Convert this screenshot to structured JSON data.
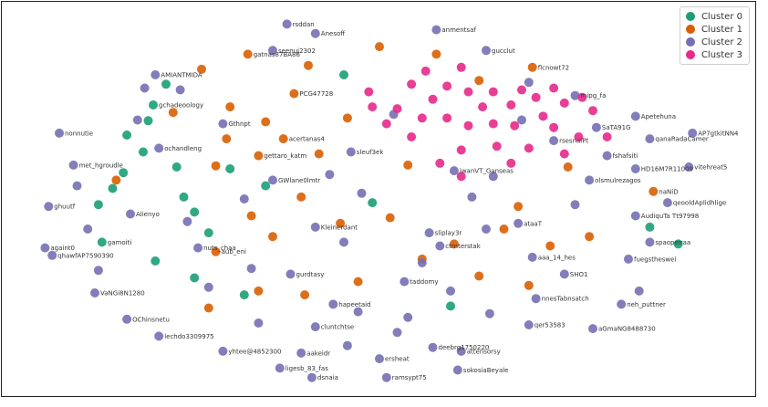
{
  "chart_data": {
    "type": "scatter",
    "title": "",
    "xlabel": "",
    "ylabel": "",
    "xlim": [
      0,
      100
    ],
    "ylim": [
      0,
      100
    ],
    "grid": false,
    "axes_visible": false,
    "legend_position": "top-right",
    "series": [
      {
        "name": "Cluster 0",
        "color": "#1b9e77",
        "points": [
          {
            "x": 20.0,
            "y": 80.5,
            "label": ""
          },
          {
            "x": 18.2,
            "y": 75.0,
            "label": "gchadeoology"
          },
          {
            "x": 17.5,
            "y": 70.8,
            "label": ""
          },
          {
            "x": 14.5,
            "y": 67.0,
            "label": ""
          },
          {
            "x": 16.8,
            "y": 62.5,
            "label": ""
          },
          {
            "x": 21.5,
            "y": 58.5,
            "label": ""
          },
          {
            "x": 14.0,
            "y": 57.0,
            "label": ""
          },
          {
            "x": 12.5,
            "y": 52.8,
            "label": ""
          },
          {
            "x": 10.5,
            "y": 48.5,
            "label": ""
          },
          {
            "x": 22.5,
            "y": 50.5,
            "label": ""
          },
          {
            "x": 24.0,
            "y": 46.5,
            "label": ""
          },
          {
            "x": 26.0,
            "y": 41.0,
            "label": ""
          },
          {
            "x": 11.0,
            "y": 38.5,
            "label": "gamoiti"
          },
          {
            "x": 18.5,
            "y": 33.5,
            "label": ""
          },
          {
            "x": 24.0,
            "y": 29.0,
            "label": ""
          },
          {
            "x": 31.0,
            "y": 24.5,
            "label": ""
          },
          {
            "x": 45.0,
            "y": 83.0,
            "label": ""
          },
          {
            "x": 49.0,
            "y": 49.0,
            "label": ""
          },
          {
            "x": 60.0,
            "y": 21.5,
            "label": ""
          },
          {
            "x": 88.0,
            "y": 42.5,
            "label": ""
          },
          {
            "x": 92.0,
            "y": 38.0,
            "label": ""
          },
          {
            "x": 34.0,
            "y": 53.5,
            "label": ""
          },
          {
            "x": 29.0,
            "y": 58.0,
            "label": ""
          }
        ]
      },
      {
        "name": "Cluster 1",
        "color": "#d95f02",
        "points": [
          {
            "x": 50.0,
            "y": 90.5,
            "label": ""
          },
          {
            "x": 31.5,
            "y": 88.5,
            "label": "gatnas87BA86"
          },
          {
            "x": 25.0,
            "y": 84.5,
            "label": ""
          },
          {
            "x": 40.0,
            "y": 85.5,
            "label": ""
          },
          {
            "x": 38.0,
            "y": 78.0,
            "label": "PCG47728"
          },
          {
            "x": 29.0,
            "y": 74.5,
            "label": ""
          },
          {
            "x": 34.0,
            "y": 70.5,
            "label": ""
          },
          {
            "x": 36.5,
            "y": 66.0,
            "label": "acertanas4"
          },
          {
            "x": 33.0,
            "y": 61.5,
            "label": "gettaro_katm"
          },
          {
            "x": 27.0,
            "y": 58.8,
            "label": ""
          },
          {
            "x": 13.0,
            "y": 55.0,
            "label": ""
          },
          {
            "x": 41.5,
            "y": 62.0,
            "label": ""
          },
          {
            "x": 39.0,
            "y": 50.5,
            "label": ""
          },
          {
            "x": 32.0,
            "y": 45.5,
            "label": ""
          },
          {
            "x": 44.5,
            "y": 43.5,
            "label": ""
          },
          {
            "x": 51.5,
            "y": 45.0,
            "label": ""
          },
          {
            "x": 35.0,
            "y": 40.0,
            "label": ""
          },
          {
            "x": 27.0,
            "y": 36.0,
            "label": "aub_eni"
          },
          {
            "x": 56.0,
            "y": 34.0,
            "label": ""
          },
          {
            "x": 60.5,
            "y": 38.0,
            "label": ""
          },
          {
            "x": 67.5,
            "y": 42.0,
            "label": ""
          },
          {
            "x": 69.5,
            "y": 48.0,
            "label": ""
          },
          {
            "x": 74.0,
            "y": 37.5,
            "label": ""
          },
          {
            "x": 79.5,
            "y": 40.0,
            "label": ""
          },
          {
            "x": 76.5,
            "y": 58.5,
            "label": ""
          },
          {
            "x": 88.5,
            "y": 52.0,
            "label": "naNiD"
          },
          {
            "x": 71.5,
            "y": 85.0,
            "label": "flcnowt72"
          },
          {
            "x": 64.0,
            "y": 81.5,
            "label": ""
          },
          {
            "x": 58.0,
            "y": 88.5,
            "label": ""
          },
          {
            "x": 33.0,
            "y": 25.5,
            "label": ""
          },
          {
            "x": 26.0,
            "y": 21.0,
            "label": ""
          },
          {
            "x": 39.5,
            "y": 24.5,
            "label": ""
          },
          {
            "x": 47.0,
            "y": 28.0,
            "label": ""
          },
          {
            "x": 71.0,
            "y": 27.0,
            "label": ""
          },
          {
            "x": 64.0,
            "y": 29.5,
            "label": ""
          },
          {
            "x": 21.0,
            "y": 73.0,
            "label": ""
          },
          {
            "x": 28.5,
            "y": 66.0,
            "label": ""
          },
          {
            "x": 45.5,
            "y": 71.5,
            "label": ""
          },
          {
            "x": 54.0,
            "y": 59.0,
            "label": ""
          }
        ]
      },
      {
        "name": "Cluster 2",
        "color": "#7570b3",
        "points": [
          {
            "x": 37.0,
            "y": 96.5,
            "label": "rsddan"
          },
          {
            "x": 41.0,
            "y": 94.0,
            "label": "Anesoff"
          },
          {
            "x": 58.0,
            "y": 95.0,
            "label": "anmentsaf"
          },
          {
            "x": 35.0,
            "y": 89.5,
            "label": "seenuj2302"
          },
          {
            "x": 65.0,
            "y": 89.5,
            "label": "gucclut"
          },
          {
            "x": 18.5,
            "y": 83.0,
            "label": "AMIANTMIDA"
          },
          {
            "x": 22.0,
            "y": 79.0,
            "label": ""
          },
          {
            "x": 5.0,
            "y": 67.5,
            "label": "nonnutie"
          },
          {
            "x": 7.0,
            "y": 59.0,
            "label": "met_hgroudle"
          },
          {
            "x": 3.5,
            "y": 48.0,
            "label": "ghuutf"
          },
          {
            "x": 3.0,
            "y": 37.0,
            "label": "againt0"
          },
          {
            "x": 4.0,
            "y": 35.0,
            "label": "qhawfAP7590390"
          },
          {
            "x": 10.0,
            "y": 25.0,
            "label": "VaNGi8N1280"
          },
          {
            "x": 14.5,
            "y": 18.0,
            "label": "OChinsnetu"
          },
          {
            "x": 19.0,
            "y": 13.5,
            "label": "lechdo3309975"
          },
          {
            "x": 28.0,
            "y": 9.5,
            "label": "yhtee@4852300"
          },
          {
            "x": 36.0,
            "y": 5.0,
            "label": "ligesb_83_fas"
          },
          {
            "x": 40.5,
            "y": 2.5,
            "label": "dsnaia"
          },
          {
            "x": 51.0,
            "y": 2.5,
            "label": "ramsypt75"
          },
          {
            "x": 61.0,
            "y": 4.5,
            "label": "sokosiaBeyale"
          },
          {
            "x": 50.0,
            "y": 7.5,
            "label": "ersheat"
          },
          {
            "x": 57.5,
            "y": 10.5,
            "label": "deebrg1750220"
          },
          {
            "x": 61.5,
            "y": 9.5,
            "label": "attensorsy"
          },
          {
            "x": 71.0,
            "y": 16.5,
            "label": "qer53583"
          },
          {
            "x": 80.0,
            "y": 15.5,
            "label": "aGmaNG8488730"
          },
          {
            "x": 84.0,
            "y": 22.0,
            "label": "neh_puttner"
          },
          {
            "x": 86.5,
            "y": 25.5,
            "label": ""
          },
          {
            "x": 85.0,
            "y": 34.0,
            "label": "fuegstheswei"
          },
          {
            "x": 88.0,
            "y": 38.5,
            "label": "spaopeiraa"
          },
          {
            "x": 86.0,
            "y": 45.5,
            "label": "AudiquTa Tt97998"
          },
          {
            "x": 90.5,
            "y": 49.0,
            "label": "qeooldAplidhlige"
          },
          {
            "x": 93.5,
            "y": 58.5,
            "label": "vitehreat5"
          },
          {
            "x": 94.0,
            "y": 67.5,
            "label": "AP7gtkitNN4"
          },
          {
            "x": 88.0,
            "y": 66.0,
            "label": "qanaRadaCamer"
          },
          {
            "x": 86.0,
            "y": 72.0,
            "label": "Apetehuna"
          },
          {
            "x": 86.0,
            "y": 58.0,
            "label": "HD16M7R11009"
          },
          {
            "x": 82.0,
            "y": 61.5,
            "label": "fshafsiti"
          },
          {
            "x": 79.5,
            "y": 55.0,
            "label": "olsmulrezagos"
          },
          {
            "x": 77.5,
            "y": 77.5,
            "label": "mipg_fa"
          },
          {
            "x": 71.0,
            "y": 81.0,
            "label": ""
          },
          {
            "x": 28.0,
            "y": 70.0,
            "label": "Gthnpt"
          },
          {
            "x": 16.0,
            "y": 71.0,
            "label": ""
          },
          {
            "x": 19.0,
            "y": 63.5,
            "label": "ochandleng"
          },
          {
            "x": 15.0,
            "y": 46.0,
            "label": "Alienyo"
          },
          {
            "x": 24.5,
            "y": 37.0,
            "label": "nuts_chaa"
          },
          {
            "x": 32.0,
            "y": 31.5,
            "label": ""
          },
          {
            "x": 37.5,
            "y": 30.0,
            "label": "gurdtasy"
          },
          {
            "x": 43.5,
            "y": 22.0,
            "label": "hapeetaid"
          },
          {
            "x": 53.5,
            "y": 28.0,
            "label": "taddomy"
          },
          {
            "x": 56.0,
            "y": 33.0,
            "label": ""
          },
          {
            "x": 58.5,
            "y": 37.5,
            "label": "ctrnterstak"
          },
          {
            "x": 57.0,
            "y": 41.0,
            "label": "sliplay3r"
          },
          {
            "x": 65.0,
            "y": 42.0,
            "label": ""
          },
          {
            "x": 69.5,
            "y": 43.5,
            "label": "ataaT"
          },
          {
            "x": 71.5,
            "y": 34.5,
            "label": "aaa_14_hes"
          },
          {
            "x": 76.0,
            "y": 30.0,
            "label": "SHO1"
          },
          {
            "x": 72.0,
            "y": 23.5,
            "label": "nnesTabnsatch"
          },
          {
            "x": 65.5,
            "y": 19.5,
            "label": ""
          },
          {
            "x": 54.0,
            "y": 18.5,
            "label": ""
          },
          {
            "x": 47.0,
            "y": 20.0,
            "label": ""
          },
          {
            "x": 41.0,
            "y": 16.0,
            "label": "cluntchtse"
          },
          {
            "x": 33.0,
            "y": 17.0,
            "label": ""
          },
          {
            "x": 45.0,
            "y": 38.5,
            "label": ""
          },
          {
            "x": 41.0,
            "y": 42.5,
            "label": "Kleinerdant"
          },
          {
            "x": 47.5,
            "y": 51.5,
            "label": ""
          },
          {
            "x": 63.0,
            "y": 50.5,
            "label": ""
          },
          {
            "x": 43.0,
            "y": 56.5,
            "label": ""
          },
          {
            "x": 46.0,
            "y": 62.5,
            "label": "sleuf3ek"
          },
          {
            "x": 35.0,
            "y": 55.0,
            "label": "GWlane0lmtr"
          },
          {
            "x": 31.0,
            "y": 50.0,
            "label": ""
          },
          {
            "x": 9.0,
            "y": 42.0,
            "label": ""
          },
          {
            "x": 60.5,
            "y": 57.5,
            "label": "iwanVT_Ganseas"
          },
          {
            "x": 74.5,
            "y": 65.5,
            "label": "rsesnalPt"
          },
          {
            "x": 80.5,
            "y": 69.0,
            "label": "SaTA91G"
          },
          {
            "x": 70.0,
            "y": 71.0,
            "label": ""
          },
          {
            "x": 52.0,
            "y": 72.5,
            "label": ""
          },
          {
            "x": 17.0,
            "y": 79.5,
            "label": ""
          },
          {
            "x": 39.0,
            "y": 9.0,
            "label": "aakeidr"
          },
          {
            "x": 45.5,
            "y": 11.0,
            "label": ""
          },
          {
            "x": 26.0,
            "y": 26.5,
            "label": ""
          },
          {
            "x": 52.5,
            "y": 14.5,
            "label": ""
          },
          {
            "x": 60.0,
            "y": 25.5,
            "label": ""
          },
          {
            "x": 66.0,
            "y": 56.0,
            "label": ""
          },
          {
            "x": 77.5,
            "y": 48.5,
            "label": ""
          },
          {
            "x": 23.0,
            "y": 44.0,
            "label": ""
          },
          {
            "x": 10.5,
            "y": 31.0,
            "label": ""
          },
          {
            "x": 7.5,
            "y": 53.5,
            "label": ""
          }
        ]
      },
      {
        "name": "Cluster 3",
        "color": "#e7298a",
        "points": [
          {
            "x": 61.5,
            "y": 85.0,
            "label": ""
          },
          {
            "x": 56.5,
            "y": 84.0,
            "label": ""
          },
          {
            "x": 54.5,
            "y": 80.5,
            "label": ""
          },
          {
            "x": 57.5,
            "y": 76.5,
            "label": ""
          },
          {
            "x": 59.5,
            "y": 80.0,
            "label": ""
          },
          {
            "x": 62.5,
            "y": 78.5,
            "label": ""
          },
          {
            "x": 64.5,
            "y": 74.5,
            "label": ""
          },
          {
            "x": 66.0,
            "y": 78.5,
            "label": ""
          },
          {
            "x": 68.5,
            "y": 75.0,
            "label": ""
          },
          {
            "x": 70.0,
            "y": 79.0,
            "label": ""
          },
          {
            "x": 72.0,
            "y": 77.0,
            "label": ""
          },
          {
            "x": 74.5,
            "y": 79.5,
            "label": ""
          },
          {
            "x": 76.0,
            "y": 75.5,
            "label": ""
          },
          {
            "x": 78.5,
            "y": 77.0,
            "label": ""
          },
          {
            "x": 80.0,
            "y": 73.5,
            "label": ""
          },
          {
            "x": 73.0,
            "y": 72.0,
            "label": ""
          },
          {
            "x": 69.0,
            "y": 69.5,
            "label": ""
          },
          {
            "x": 66.0,
            "y": 70.0,
            "label": ""
          },
          {
            "x": 62.5,
            "y": 69.5,
            "label": ""
          },
          {
            "x": 59.5,
            "y": 71.5,
            "label": ""
          },
          {
            "x": 56.0,
            "y": 71.5,
            "label": ""
          },
          {
            "x": 52.5,
            "y": 74.0,
            "label": ""
          },
          {
            "x": 49.0,
            "y": 74.5,
            "label": ""
          },
          {
            "x": 48.5,
            "y": 78.5,
            "label": ""
          },
          {
            "x": 51.0,
            "y": 70.0,
            "label": ""
          },
          {
            "x": 54.5,
            "y": 66.5,
            "label": ""
          },
          {
            "x": 61.5,
            "y": 63.0,
            "label": ""
          },
          {
            "x": 66.5,
            "y": 64.0,
            "label": ""
          },
          {
            "x": 71.0,
            "y": 63.5,
            "label": ""
          },
          {
            "x": 74.5,
            "y": 69.0,
            "label": ""
          },
          {
            "x": 78.0,
            "y": 66.5,
            "label": ""
          },
          {
            "x": 76.0,
            "y": 62.0,
            "label": ""
          },
          {
            "x": 82.0,
            "y": 66.5,
            "label": ""
          },
          {
            "x": 61.5,
            "y": 56.0,
            "label": ""
          },
          {
            "x": 58.5,
            "y": 59.5,
            "label": ""
          },
          {
            "x": 68.5,
            "y": 59.5,
            "label": ""
          }
        ]
      }
    ]
  }
}
